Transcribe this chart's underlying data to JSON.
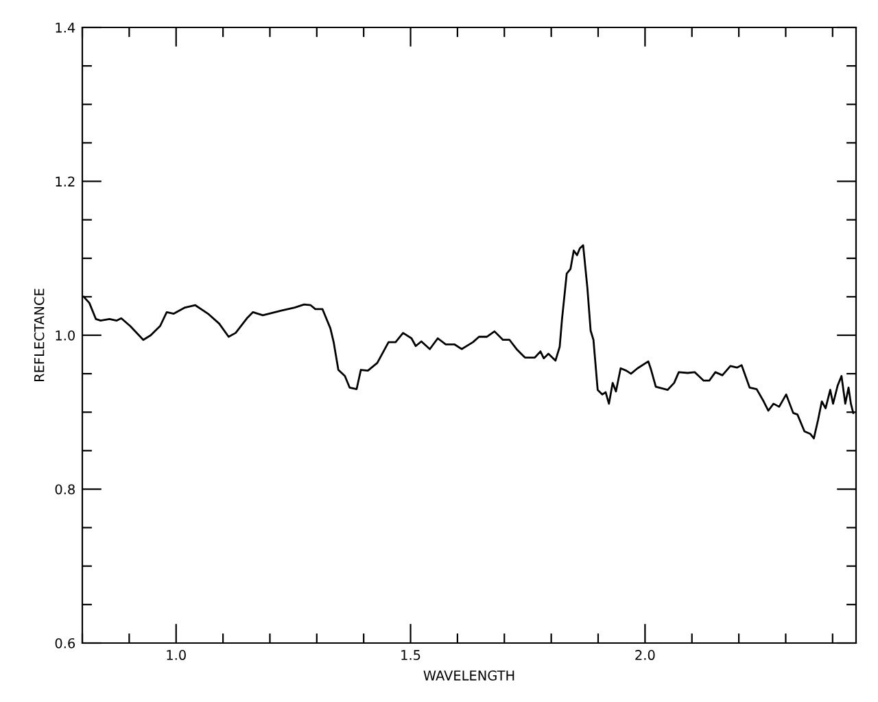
{
  "chart_data": {
    "type": "line",
    "xlabel": "WAVELENGTH",
    "ylabel": "REFLECTANCE",
    "xlim": [
      0.8,
      2.45
    ],
    "ylim": [
      0.6,
      1.4
    ],
    "xticks": [
      {
        "value": 1,
        "label": "1.0"
      },
      1.5,
      {
        "value": 2,
        "label": "2.0"
      }
    ],
    "yticks": [
      0.6,
      0.8,
      {
        "value": 1,
        "label": "1.0"
      },
      1.2,
      1.4
    ],
    "grid": false,
    "legend": false,
    "series": [
      {
        "color": "#000000",
        "x": [
          0.803,
          0.815,
          0.829,
          0.839,
          0.858,
          0.873,
          0.883,
          0.902,
          0.93,
          0.946,
          0.966,
          0.98,
          0.995,
          1.019,
          1.041,
          1.068,
          1.092,
          1.112,
          1.127,
          1.151,
          1.164,
          1.185,
          1.224,
          1.253,
          1.273,
          1.287,
          1.297,
          1.312,
          1.329,
          1.336,
          1.346,
          1.36,
          1.37,
          1.385,
          1.394,
          1.409,
          1.429,
          1.453,
          1.468,
          1.484,
          1.502,
          1.511,
          1.523,
          1.541,
          1.558,
          1.575,
          1.594,
          1.609,
          1.633,
          1.646,
          1.663,
          1.679,
          1.697,
          1.711,
          1.726,
          1.744,
          1.765,
          1.777,
          1.784,
          1.794,
          1.809,
          1.818,
          1.823,
          1.833,
          1.841,
          1.848,
          1.855,
          1.861,
          1.868,
          1.877,
          1.884,
          1.89,
          1.899,
          1.909,
          1.916,
          1.923,
          1.931,
          1.938,
          1.948,
          1.96,
          1.97,
          1.984,
          2.007,
          2.013,
          2.023,
          2.048,
          2.062,
          2.072,
          2.091,
          2.106,
          2.125,
          2.137,
          2.15,
          2.165,
          2.182,
          2.196,
          2.206,
          2.223,
          2.238,
          2.253,
          2.263,
          2.274,
          2.286,
          2.301,
          2.316,
          2.325,
          2.34,
          2.352,
          2.36,
          2.369,
          2.377,
          2.385,
          2.395,
          2.401,
          2.411,
          2.419,
          2.427,
          2.434,
          2.439,
          2.444
        ],
        "values": [
          1.05,
          1.042,
          1.021,
          1.019,
          1.021,
          1.019,
          1.022,
          1.012,
          0.994,
          1.0,
          1.012,
          1.03,
          1.028,
          1.036,
          1.039,
          1.028,
          1.015,
          0.998,
          1.003,
          1.022,
          1.03,
          1.026,
          1.032,
          1.036,
          1.04,
          1.039,
          1.034,
          1.034,
          1.009,
          0.991,
          0.955,
          0.947,
          0.932,
          0.93,
          0.955,
          0.954,
          0.964,
          0.991,
          0.991,
          1.003,
          0.996,
          0.986,
          0.992,
          0.982,
          0.996,
          0.988,
          0.988,
          0.982,
          0.991,
          0.998,
          0.998,
          1.005,
          0.994,
          0.994,
          0.982,
          0.971,
          0.971,
          0.979,
          0.97,
          0.976,
          0.967,
          0.985,
          1.021,
          1.08,
          1.086,
          1.11,
          1.104,
          1.113,
          1.117,
          1.062,
          1.006,
          0.994,
          0.929,
          0.923,
          0.926,
          0.911,
          0.938,
          0.927,
          0.957,
          0.954,
          0.95,
          0.957,
          0.966,
          0.955,
          0.933,
          0.929,
          0.938,
          0.952,
          0.951,
          0.952,
          0.941,
          0.941,
          0.952,
          0.948,
          0.96,
          0.958,
          0.961,
          0.932,
          0.93,
          0.914,
          0.902,
          0.911,
          0.907,
          0.923,
          0.899,
          0.897,
          0.875,
          0.872,
          0.866,
          0.89,
          0.914,
          0.905,
          0.929,
          0.911,
          0.935,
          0.947,
          0.911,
          0.932,
          0.911,
          0.899
        ]
      }
    ]
  }
}
